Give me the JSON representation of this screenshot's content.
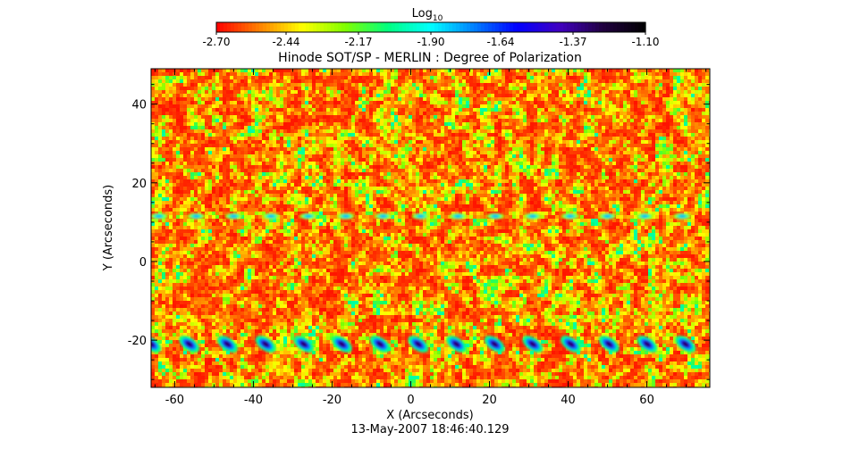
{
  "chart_data": {
    "type": "heatmap",
    "title": "Hinode SOT/SP - MERLIN : Degree of Polarization",
    "xlabel": "X (Arcseconds)",
    "ylabel": "Y (Arcseconds)",
    "timestamp": "13-May-2007 18:46:40.129",
    "xlim": [
      -66,
      76
    ],
    "ylim": [
      -32,
      49
    ],
    "x_ticks": [
      -60,
      -40,
      -20,
      0,
      20,
      40,
      60
    ],
    "y_ticks": [
      -20,
      0,
      20,
      40
    ],
    "colorbar": {
      "label_base": "Log",
      "label_subscript": "10",
      "range": [
        -2.7,
        -1.1
      ],
      "tick_labels": [
        "-2.70",
        "-2.44",
        "-2.17",
        "-1.90",
        "-1.64",
        "-1.37",
        "-1.10"
      ],
      "tick_values": [
        -2.7,
        -2.44,
        -2.17,
        -1.9,
        -1.64,
        -1.37,
        -1.1
      ],
      "colormap": [
        "#ff0000",
        "#ff8000",
        "#ffff00",
        "#80ff00",
        "#00ff80",
        "#00ffff",
        "#0080ff",
        "#0000ff",
        "#4000c0",
        "#200040",
        "#000000"
      ]
    },
    "background_level": -2.6,
    "field_variation": [
      -2.7,
      -2.17
    ],
    "bands": [
      {
        "y": 11.5,
        "x_start": -64,
        "x_end": 76,
        "spacing": 9.5,
        "peak_level": -1.8
      },
      {
        "y": -21,
        "x_start": -66,
        "x_end": 76,
        "spacing": 9.7,
        "peak_level": -1.3
      }
    ],
    "grid": false
  }
}
